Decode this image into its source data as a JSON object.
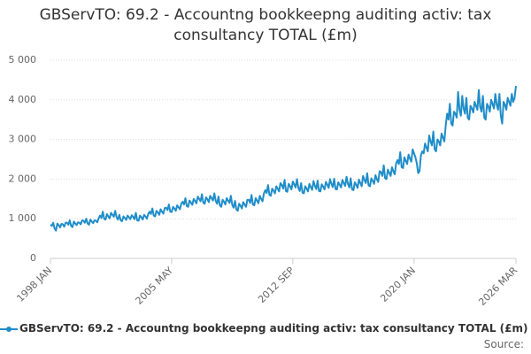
{
  "chart_data": {
    "type": "line",
    "title": "GBServTO: 69.2 - Accountng bookkeepng auditing activ: tax consultancy TOTAL (£m)",
    "source": "Source:",
    "categories": [
      "1998 JAN",
      null,
      null,
      null,
      null,
      null,
      null,
      null,
      null,
      null,
      null,
      null,
      null,
      null,
      null,
      null,
      null,
      null,
      null,
      null,
      null,
      null,
      null,
      null,
      null,
      null,
      null,
      null,
      null,
      null,
      null,
      null,
      null,
      null,
      null,
      null,
      null,
      null,
      null,
      null,
      null,
      null,
      null,
      null,
      null,
      null,
      null,
      null,
      null,
      null,
      null,
      null,
      null,
      null,
      null,
      null,
      null,
      null,
      null,
      null,
      null,
      null,
      null,
      null,
      null,
      null,
      null,
      null,
      null,
      null,
      null,
      null,
      null,
      null,
      null,
      null,
      null,
      null,
      null,
      null,
      null,
      null,
      null,
      null,
      null,
      null,
      null,
      null,
      "2005 MAY",
      null,
      null,
      null,
      null,
      null,
      null,
      null,
      null,
      null,
      null,
      null,
      null,
      null,
      null,
      null,
      null,
      null,
      null,
      null,
      null,
      null,
      null,
      null,
      null,
      null,
      null,
      null,
      null,
      null,
      null,
      null,
      null,
      null,
      null,
      null,
      null,
      null,
      null,
      null,
      null,
      null,
      null,
      null,
      null,
      null,
      null,
      null,
      null,
      null,
      null,
      null,
      null,
      null,
      null,
      null,
      null,
      null,
      null,
      null,
      null,
      null,
      null,
      null,
      null,
      null,
      null,
      null,
      null,
      null,
      null,
      null,
      null,
      null,
      null,
      null,
      null,
      null,
      null,
      null,
      null,
      null,
      null,
      null,
      null,
      null,
      null,
      null,
      "2012 SEP",
      null,
      null,
      null,
      null,
      null,
      null,
      null,
      null,
      null,
      null,
      null,
      null,
      null,
      null,
      null,
      null,
      null,
      null,
      null,
      null,
      null,
      null,
      null,
      null,
      null,
      null,
      null,
      null,
      null,
      null,
      null,
      null,
      null,
      null,
      null,
      null,
      null,
      null,
      null,
      null,
      null,
      null,
      null,
      null,
      null,
      null,
      null,
      null,
      null,
      null,
      null,
      null,
      null,
      null,
      null,
      null,
      null,
      null,
      null,
      null,
      null,
      null,
      null,
      null,
      null,
      null,
      null,
      null,
      null,
      null,
      null,
      null,
      null,
      null,
      null,
      null,
      null,
      null,
      null,
      null,
      null,
      null,
      null,
      null,
      null,
      null,
      null,
      "2020 JAN",
      null,
      null,
      null,
      null,
      null,
      null,
      null,
      null,
      null,
      null,
      null,
      null,
      null,
      null,
      null,
      null,
      null,
      null,
      null,
      null,
      null,
      null,
      null,
      null,
      null,
      null,
      null,
      null,
      null,
      null,
      null,
      null,
      null,
      null,
      null,
      null,
      null,
      null,
      null,
      null,
      null,
      null,
      null,
      null,
      null,
      null,
      null,
      null,
      null,
      null,
      null,
      null,
      null,
      null,
      null,
      null,
      null,
      null,
      null,
      null,
      null,
      null,
      null,
      null,
      null,
      null,
      null,
      null,
      null,
      null,
      null,
      null,
      null,
      "2026 MAR"
    ],
    "series": [
      {
        "name": "GBServTO: 69.2 - Accountng bookkeepng auditing activ: tax consultancy TOTAL (£m)",
        "color": "#1f8dc9",
        "values": [
          850,
          820,
          900,
          760,
          700,
          880,
          840,
          780,
          870,
          860,
          800,
          900,
          900,
          850,
          960,
          820,
          790,
          930,
          880,
          840,
          910,
          900,
          860,
          960,
          950,
          900,
          1000,
          880,
          850,
          980,
          930,
          890,
          960,
          950,
          910,
          1010,
          1080,
          1020,
          1180,
          1000,
          980,
          1120,
          1060,
          1010,
          1150,
          1100,
          1050,
          1200,
          1040,
          980,
          1100,
          960,
          940,
          1060,
          1020,
          970,
          1080,
          1040,
          990,
          1090,
          1050,
          990,
          1150,
          960,
          950,
          1080,
          1040,
          980,
          1100,
          1060,
          1000,
          1120,
          1180,
          1120,
          1260,
          1080,
          1060,
          1200,
          1160,
          1100,
          1240,
          1180,
          1130,
          1270,
          1280,
          1220,
          1360,
          1180,
          1170,
          1300,
          1260,
          1200,
          1340,
          1290,
          1240,
          1380,
          1430,
          1360,
          1520,
          1320,
          1300,
          1460,
          1410,
          1350,
          1500,
          1450,
          1390,
          1560,
          1500,
          1440,
          1620,
          1400,
          1380,
          1540,
          1490,
          1420,
          1580,
          1520,
          1460,
          1640,
          1450,
          1380,
          1560,
          1340,
          1300,
          1480,
          1430,
          1360,
          1520,
          1460,
          1400,
          1580,
          1350,
          1280,
          1450,
          1240,
          1200,
          1380,
          1330,
          1260,
          1420,
          1360,
          1300,
          1480,
          1480,
          1400,
          1600,
          1360,
          1340,
          1520,
          1460,
          1390,
          1580,
          1500,
          1440,
          1640,
          1720,
          1650,
          1850,
          1600,
          1580,
          1760,
          1710,
          1640,
          1820,
          1760,
          1690,
          1900,
          1850,
          1760,
          1980,
          1700,
          1680,
          1880,
          1820,
          1740,
          1940,
          1870,
          1790,
          2000,
          1780,
          1700,
          1900,
          1660,
          1640,
          1820,
          1760,
          1690,
          1880,
          1800,
          1730,
          1950,
          1830,
          1750,
          1960,
          1700,
          1690,
          1870,
          1810,
          1740,
          1930,
          1860,
          1780,
          2000,
          1880,
          1800,
          2010,
          1750,
          1740,
          1920,
          1860,
          1790,
          1980,
          1900,
          1830,
          2060,
          1880,
          1790,
          2020,
          1740,
          1720,
          1920,
          1860,
          1780,
          1990,
          1900,
          1820,
          2080,
          1980,
          1900,
          2150,
          1840,
          1820,
          2020,
          1960,
          1880,
          2100,
          2000,
          1930,
          2200,
          2180,
          2080,
          2350,
          2020,
          2000,
          2240,
          2160,
          2080,
          2300,
          2200,
          2120,
          2400,
          2480,
          2380,
          2680,
          2300,
          2280,
          2550,
          2460,
          2380,
          2620,
          2520,
          2440,
          2750,
          2650,
          2550,
          2400,
          2150,
          2200,
          2600,
          2700,
          2650,
          2900,
          2800,
          2700,
          3100,
          2950,
          2850,
          3200,
          2750,
          2700,
          3000,
          2950,
          2850,
          3150,
          3050,
          2950,
          3350,
          3650,
          3500,
          3900,
          3400,
          3350,
          3700,
          3650,
          3550,
          4200,
          3750,
          3600,
          4100,
          3780,
          3650,
          4050,
          3550,
          3500,
          3850,
          3780,
          3680,
          3950,
          3850,
          3750,
          4250,
          3820,
          3700,
          4100,
          3550,
          3500,
          3900,
          3830,
          3700,
          4000,
          3900,
          3780,
          4150,
          3880,
          3750,
          4150,
          3600,
          3400,
          3950,
          3880,
          3750,
          4050,
          3950,
          3850,
          4150,
          3950,
          4050,
          4350
        ]
      }
    ],
    "ylim": [
      0,
      5000
    ],
    "yticks": [
      0,
      {
        "value": 1000,
        "label": "1 000"
      },
      {
        "value": 2000,
        "label": "2 000"
      },
      {
        "value": 3000,
        "label": "3 000"
      },
      {
        "value": 4000,
        "label": "4 000"
      },
      {
        "value": 5000,
        "label": "5 000"
      }
    ],
    "grid": true
  }
}
